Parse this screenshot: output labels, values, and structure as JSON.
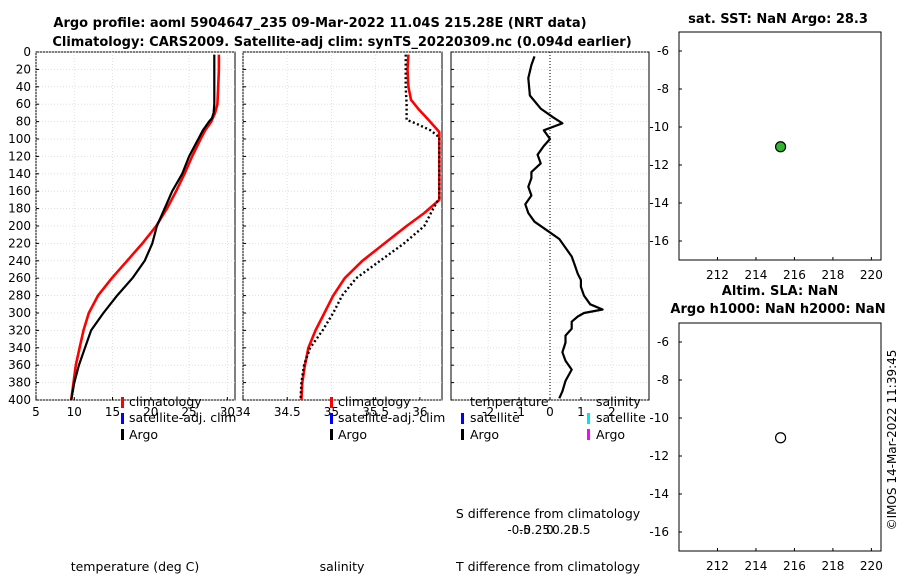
{
  "chart_data": [
    {
      "type": "line",
      "panel": "temperature",
      "title": [
        "Argo profile: aoml 5904647_235 09-Mar-2022 11.04S 215.28E (NRT data)",
        "Climatology: CARS2009. Satellite-adj clim: synTS_20220309.nc (0.094d earlier)"
      ],
      "xlabel": "temperature (deg C)",
      "xlim": [
        5,
        31
      ],
      "xticks": [
        5,
        10,
        15,
        20,
        25,
        30
      ],
      "ylim": [
        0,
        400
      ],
      "yticks": [
        0,
        20,
        40,
        60,
        80,
        100,
        120,
        140,
        160,
        180,
        200,
        220,
        240,
        260,
        280,
        300,
        320,
        340,
        360,
        380,
        400
      ],
      "legend": [
        "climatology",
        "satellite-adj. clim",
        "Argo"
      ],
      "series": [
        {
          "name": "climatology",
          "color": "#ff0000",
          "depth": [
            3,
            20,
            40,
            60,
            70,
            80,
            90,
            100,
            120,
            140,
            160,
            180,
            200,
            220,
            240,
            260,
            280,
            300,
            320,
            340,
            360,
            380,
            400
          ],
          "values": [
            28.9,
            28.9,
            28.8,
            28.7,
            28.4,
            27.9,
            27.1,
            26.5,
            25.4,
            24.4,
            23.3,
            22.1,
            20.7,
            18.9,
            16.9,
            14.9,
            13.1,
            11.9,
            11.2,
            10.7,
            10.2,
            9.9,
            9.6
          ]
        },
        {
          "name": "Argo",
          "color": "#000000",
          "depth": [
            3,
            20,
            40,
            60,
            70,
            76,
            80,
            90,
            100,
            110,
            120,
            140,
            160,
            180,
            200,
            220,
            240,
            260,
            280,
            300,
            320,
            340,
            360,
            380,
            400
          ],
          "values": [
            28.3,
            28.3,
            28.3,
            28.3,
            28.2,
            28.0,
            27.6,
            26.8,
            26.2,
            25.6,
            25.0,
            24.1,
            22.8,
            21.8,
            20.8,
            20.2,
            19.2,
            17.6,
            15.6,
            13.8,
            12.2,
            11.4,
            10.6,
            10.0,
            9.6
          ]
        }
      ]
    },
    {
      "type": "line",
      "panel": "salinity",
      "xlabel": "salinity",
      "xlim": [
        34.0,
        36.25
      ],
      "xticks": [
        34,
        34.5,
        35,
        35.5,
        36
      ],
      "ylim": [
        0,
        400
      ],
      "legend": [
        "climatology",
        "satellite-adj. clim",
        "Argo"
      ],
      "series": [
        {
          "name": "climatology",
          "color": "#ff0000",
          "depth": [
            3,
            20,
            40,
            55,
            65,
            75,
            85,
            92,
            170,
            185,
            200,
            220,
            240,
            260,
            280,
            300,
            320,
            340,
            360,
            380,
            400
          ],
          "values": [
            35.87,
            35.86,
            35.87,
            35.9,
            35.98,
            36.07,
            36.16,
            36.22,
            36.22,
            36.05,
            35.85,
            35.6,
            35.35,
            35.15,
            35.02,
            34.92,
            34.82,
            34.74,
            34.7,
            34.67,
            34.66
          ]
        },
        {
          "name": "Argo",
          "color": "#000000",
          "dashed": true,
          "depth": [
            3,
            20,
            40,
            60,
            78,
            82,
            90,
            98,
            168,
            180,
            200,
            220,
            240,
            260,
            280,
            300,
            320,
            340,
            360,
            380,
            400
          ],
          "values": [
            35.84,
            35.84,
            35.84,
            35.85,
            35.85,
            35.95,
            36.12,
            36.22,
            36.22,
            36.15,
            36.05,
            35.82,
            35.55,
            35.28,
            35.12,
            35.02,
            34.9,
            34.76,
            34.69,
            34.66,
            34.65
          ]
        }
      ]
    },
    {
      "type": "line",
      "panel": "difference",
      "xlabel": "T difference from climatology",
      "xlabel_top": "S difference from climatology",
      "xlim": [
        -3.2,
        3.2
      ],
      "xticks": [
        -2,
        -1,
        0,
        1,
        2
      ],
      "xticks_s": [
        "-0.5",
        "-0.25",
        "0",
        "0.25",
        "0.5"
      ],
      "ylim": [
        0,
        400
      ],
      "legend_temperature": [
        "temperature",
        "satellite",
        "Argo"
      ],
      "legend_salinity": [
        "salinity",
        "satellite",
        "Argo"
      ],
      "series": [
        {
          "name": "T difference",
          "color": "#000000",
          "depth": [
            5,
            15,
            30,
            50,
            65,
            75,
            82,
            90,
            95,
            100,
            108,
            118,
            128,
            138,
            145,
            155,
            165,
            175,
            185,
            195,
            205,
            215,
            225,
            235,
            245,
            255,
            262,
            270,
            280,
            290,
            296,
            300,
            304,
            310,
            318,
            326,
            334,
            345,
            355,
            365,
            378,
            390,
            398
          ],
          "values": [
            -0.5,
            -0.6,
            -0.7,
            -0.65,
            -0.3,
            0.1,
            0.4,
            -0.2,
            -0.1,
            0.0,
            -0.2,
            -0.4,
            -0.3,
            -0.6,
            -0.6,
            -0.7,
            -0.6,
            -0.8,
            -0.7,
            -0.5,
            -0.1,
            0.3,
            0.5,
            0.7,
            0.8,
            0.9,
            1.0,
            1.0,
            1.1,
            1.3,
            1.7,
            1.1,
            0.9,
            0.7,
            0.7,
            0.5,
            0.5,
            0.4,
            0.5,
            0.7,
            0.5,
            0.4,
            0.3
          ]
        }
      ]
    },
    {
      "type": "scatter",
      "panel": "sst-map",
      "title": "sat. SST: NaN Argo: 28.3",
      "xlim": [
        210,
        220.5
      ],
      "xticks": [
        212,
        214,
        216,
        218,
        220
      ],
      "ylim": [
        -17,
        -5
      ],
      "yticks": [
        -6,
        -8,
        -10,
        -12,
        -14,
        -16
      ],
      "points": [
        {
          "x": 215.28,
          "y": -11.04,
          "color": "#2db82d"
        }
      ]
    },
    {
      "type": "scatter",
      "panel": "sla-map",
      "title": [
        "Altim. SLA: NaN",
        "Argo h1000: NaN h2000: NaN"
      ],
      "xlim": [
        210,
        220.5
      ],
      "xticks": [
        212,
        214,
        216,
        218,
        220
      ],
      "ylim": [
        -17,
        -5
      ],
      "yticks": [
        -6,
        -8,
        -10,
        -12,
        -14,
        -16
      ],
      "points": [
        {
          "x": 215.28,
          "y": -11.04,
          "color": "#ffffff"
        }
      ]
    }
  ],
  "footer": {
    "copyright": "©IMOS 14-Mar-2022 11:39:45"
  }
}
